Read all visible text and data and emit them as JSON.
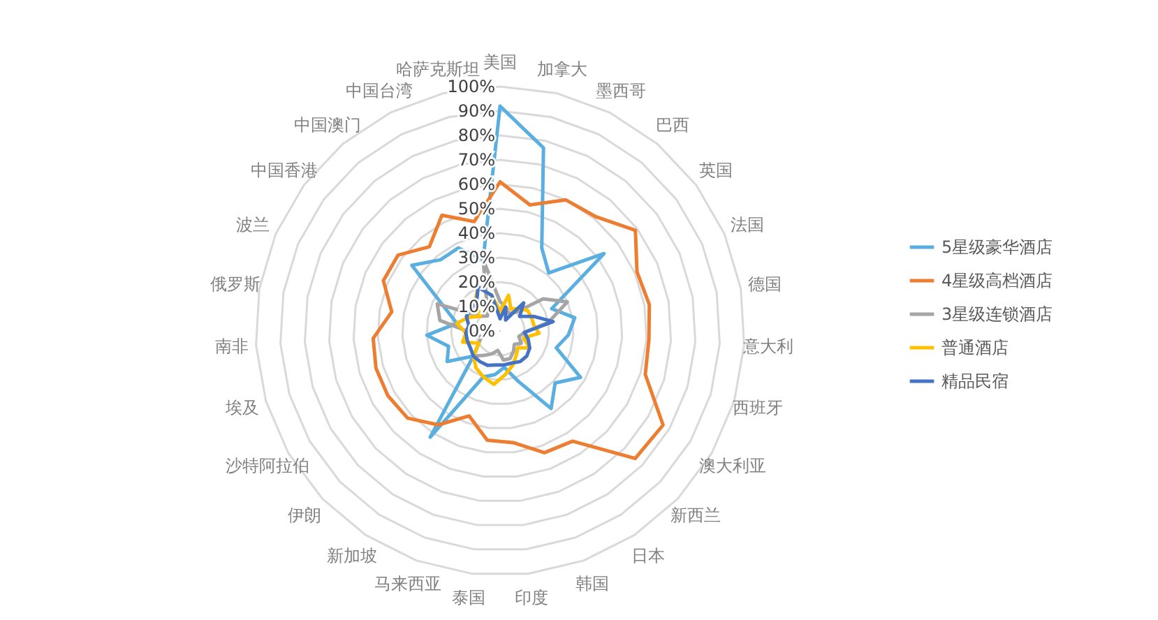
{
  "chart_data": {
    "type": "radar",
    "categories": [
      "美国",
      "加拿大",
      "墨西哥",
      "巴西",
      "英国",
      "法国",
      "德国",
      "意大利",
      "西班牙",
      "澳大利亚",
      "新西兰",
      "日本",
      "韩国",
      "印度",
      "泰国",
      "马来西亚",
      "新加坡",
      "伊朗",
      "沙特阿拉伯",
      "埃及",
      "南非",
      "俄罗斯",
      "波兰",
      "中国香港",
      "中国澳门",
      "中国台湾",
      "哈萨克斯坦"
    ],
    "series": [
      {
        "name": "5星级豪华酒店",
        "color": "#5aafe0",
        "values": [
          92,
          77,
          38,
          31,
          53,
          23,
          31,
          28,
          24,
          38,
          31,
          38,
          22,
          15,
          18,
          20,
          52,
          15,
          25,
          22,
          30,
          18,
          25,
          45,
          38,
          38,
          30
        ]
      },
      {
        "name": "4星级高档酒店",
        "color": "#ed7d31",
        "values": [
          61,
          53,
          60,
          61,
          69,
          61,
          62,
          61,
          62,
          77,
          76,
          54,
          53,
          46,
          45,
          37,
          46,
          52,
          53,
          53,
          52,
          45,
          52,
          52,
          45,
          53,
          46
        ]
      },
      {
        "name": "3星级连锁酒店",
        "color": "#a5a5a5",
        "values": [
          12,
          10,
          8,
          10,
          22,
          30,
          20,
          10,
          8,
          10,
          8,
          10,
          12,
          12,
          8,
          10,
          12,
          15,
          10,
          8,
          12,
          25,
          28,
          10,
          8,
          12,
          30
        ]
      },
      {
        "name": "普通酒店",
        "color": "#ffc000",
        "values": [
          8,
          15,
          10,
          12,
          14,
          14,
          14,
          16,
          10,
          14,
          10,
          12,
          15,
          18,
          22,
          20,
          18,
          15,
          10,
          16,
          14,
          18,
          14,
          10,
          16,
          20,
          15
        ]
      },
      {
        "name": "精品民宿",
        "color": "#4472c4",
        "values": [
          5,
          10,
          5,
          15,
          10,
          15,
          22,
          10,
          12,
          14,
          15,
          15,
          14,
          14,
          14,
          15,
          15,
          15,
          14,
          14,
          14,
          13,
          15,
          15,
          15,
          20,
          15
        ]
      }
    ],
    "ylim": [
      0,
      100
    ],
    "yticks": [
      {
        "value": 0,
        "label": "0%"
      },
      {
        "value": 10,
        "label": "10%"
      },
      {
        "value": 20,
        "label": "20%"
      },
      {
        "value": 30,
        "label": "30%"
      },
      {
        "value": 40,
        "label": "40%"
      },
      {
        "value": 50,
        "label": "50%"
      },
      {
        "value": 60,
        "label": "60%"
      },
      {
        "value": 70,
        "label": "70%"
      },
      {
        "value": 80,
        "label": "80%"
      },
      {
        "value": 90,
        "label": "90%"
      },
      {
        "value": 100,
        "label": "100%"
      }
    ],
    "grid": true,
    "legend": "right"
  }
}
